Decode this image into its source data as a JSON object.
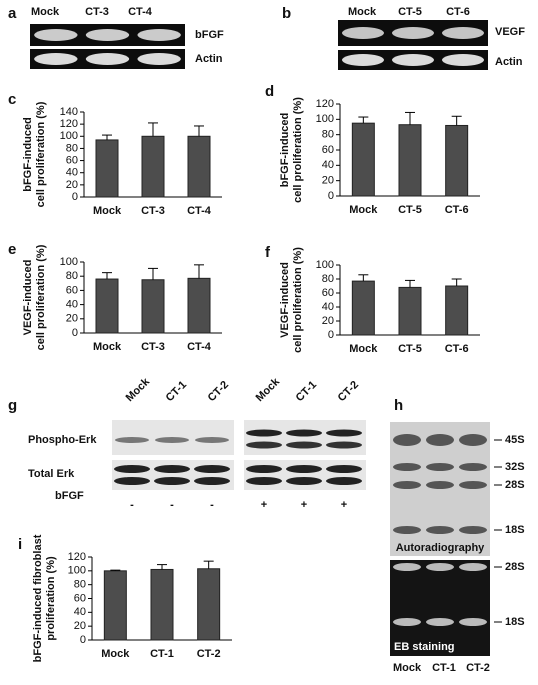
{
  "panels": {
    "a": {
      "letter": "a",
      "lanes": [
        "Mock",
        "CT-3",
        "CT-4"
      ],
      "rows": [
        "bFGF",
        "Actin"
      ]
    },
    "b": {
      "letter": "b",
      "lanes": [
        "Mock",
        "CT-5",
        "CT-6"
      ],
      "rows": [
        "VEGF",
        "Actin"
      ]
    },
    "g": {
      "letter": "g",
      "lanes": [
        "Mock",
        "CT-1",
        "CT-2",
        "Mock",
        "CT-1",
        "CT-2"
      ],
      "rows": [
        "Phospho-Erk",
        "Total Erk"
      ],
      "treatment_label": "bFGF",
      "treatment": [
        "-",
        "-",
        "-",
        "+",
        "+",
        "+"
      ]
    },
    "h": {
      "letter": "h",
      "markers_top": [
        "45S",
        "32S",
        "28S",
        "18S"
      ],
      "caption_top": "Autoradiography",
      "markers_bottom": [
        "28S",
        "18S"
      ],
      "caption_bottom": "EB staining",
      "lanes": [
        "Mock",
        "CT-1",
        "CT-2"
      ]
    }
  },
  "chart_data": [
    {
      "type": "bar",
      "letter": "c",
      "y_label": [
        "bFGF-induced",
        "cell proliferation (%)"
      ],
      "categories": [
        "Mock",
        "CT-3",
        "CT-4"
      ],
      "values": [
        94,
        100,
        100
      ],
      "errors": [
        8,
        22,
        17
      ],
      "color": "#4d4d4d",
      "ylim": [
        0,
        140
      ],
      "yticks": [
        0,
        20,
        40,
        60,
        80,
        100,
        120,
        140
      ]
    },
    {
      "type": "bar",
      "letter": "d",
      "y_label": [
        "bFGF-induced",
        "cell proliferation (%)"
      ],
      "categories": [
        "Mock",
        "CT-5",
        "CT-6"
      ],
      "values": [
        95,
        93,
        92
      ],
      "errors": [
        8,
        16,
        12
      ],
      "color": "#4d4d4d",
      "ylim": [
        0,
        120
      ],
      "yticks": [
        0,
        20,
        40,
        60,
        80,
        100,
        120
      ]
    },
    {
      "type": "bar",
      "letter": "e",
      "y_label": [
        "VEGF-induced",
        "cell proliferation (%)"
      ],
      "categories": [
        "Mock",
        "CT-3",
        "CT-4"
      ],
      "values": [
        76,
        75,
        77
      ],
      "errors": [
        9,
        16,
        19
      ],
      "color": "#4d4d4d",
      "ylim": [
        0,
        100
      ],
      "yticks": [
        0,
        20,
        40,
        60,
        80,
        100
      ]
    },
    {
      "type": "bar",
      "letter": "f",
      "y_label": [
        "VEGF-induced",
        "cell proliferation (%)"
      ],
      "categories": [
        "Mock",
        "CT-5",
        "CT-6"
      ],
      "values": [
        77,
        68,
        70
      ],
      "errors": [
        9,
        10,
        10
      ],
      "color": "#4d4d4d",
      "ylim": [
        0,
        100
      ],
      "yticks": [
        0,
        20,
        40,
        60,
        80,
        100
      ]
    },
    {
      "type": "bar",
      "letter": "i",
      "y_label": [
        "bFGF-induced fibroblast",
        "proliferation (%)"
      ],
      "categories": [
        "Mock",
        "CT-1",
        "CT-2"
      ],
      "values": [
        100,
        102,
        103
      ],
      "errors": [
        1,
        7,
        11
      ],
      "color": "#4d4d4d",
      "ylim": [
        0,
        120
      ],
      "yticks": [
        0,
        20,
        40,
        60,
        80,
        100,
        120
      ]
    }
  ]
}
